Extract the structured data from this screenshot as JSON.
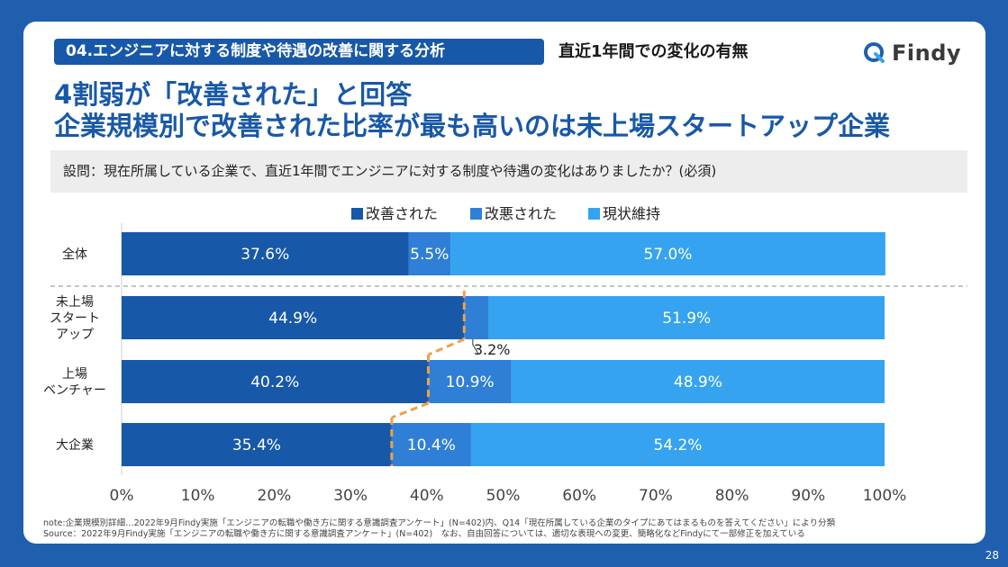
{
  "header": {
    "section_label": "04.エンジニアに対する制度や待遇の改善に関する分析",
    "subtitle": "直近1年間での変化の有無",
    "brand": "Findy"
  },
  "headline": {
    "line1": "4割弱が「改善された」と回答",
    "line2": "企業規模別で改善された比率が最も高いのは未上場スタートアップ企業"
  },
  "question": "設問：現在所属している企業で、直近1年間でエンジニアに対する制度や待遇の変化はありましたか？(必須)",
  "colors": {
    "improved": "#1858a8",
    "worsened": "#2f7fd6",
    "unchanged": "#35a3f0",
    "connector": "#f0a04a",
    "brand_blue": "#1f5fae"
  },
  "chart_data": {
    "type": "bar",
    "orientation": "horizontal-stacked-100",
    "categories": [
      "全体",
      "未上場スタートアップ",
      "上場ベンチャー",
      "大企業"
    ],
    "category_labels": [
      [
        "全体"
      ],
      [
        "未上場",
        "スタート",
        "アップ"
      ],
      [
        "上場",
        "ベンチャー"
      ],
      [
        "大企業"
      ]
    ],
    "series": [
      {
        "name": "改善された",
        "values": [
          37.6,
          44.9,
          40.2,
          35.4
        ],
        "labels": [
          "37.6%",
          "44.9%",
          "40.2%",
          "35.4%"
        ]
      },
      {
        "name": "改悪された",
        "values": [
          5.5,
          3.2,
          10.9,
          10.4
        ],
        "labels": [
          "5.5%",
          "3.2%",
          "10.9%",
          "10.4%"
        ]
      },
      {
        "name": "現状維持",
        "values": [
          57.0,
          51.9,
          48.9,
          54.2
        ],
        "labels": [
          "57.0%",
          "51.9%",
          "48.9%",
          "54.2%"
        ]
      }
    ],
    "xlim": [
      0,
      100
    ],
    "x_ticks": [
      "0%",
      "10%",
      "20%",
      "30%",
      "40%",
      "50%",
      "60%",
      "70%",
      "80%",
      "90%",
      "100%"
    ],
    "legend_position": "top-center",
    "annotation": "improved-share connector line across company-size rows"
  },
  "footnotes": {
    "note": "note:企業規模別詳細…2022年9月Findy実施「エンジニアの転職や働き方に関する意識調査アンケート」(N=402)内、Q14「現在所属している企業のタイプにあてはまるものを答えてください」により分類",
    "source": "Source：2022年9月Findy実施「エンジニアの転職や働き方に関する意識調査アンケート」(N=402)　なお、自由回答については、適切な表現への変更、簡略化などFindyにて一部修正を加えている"
  },
  "page_number": "28"
}
